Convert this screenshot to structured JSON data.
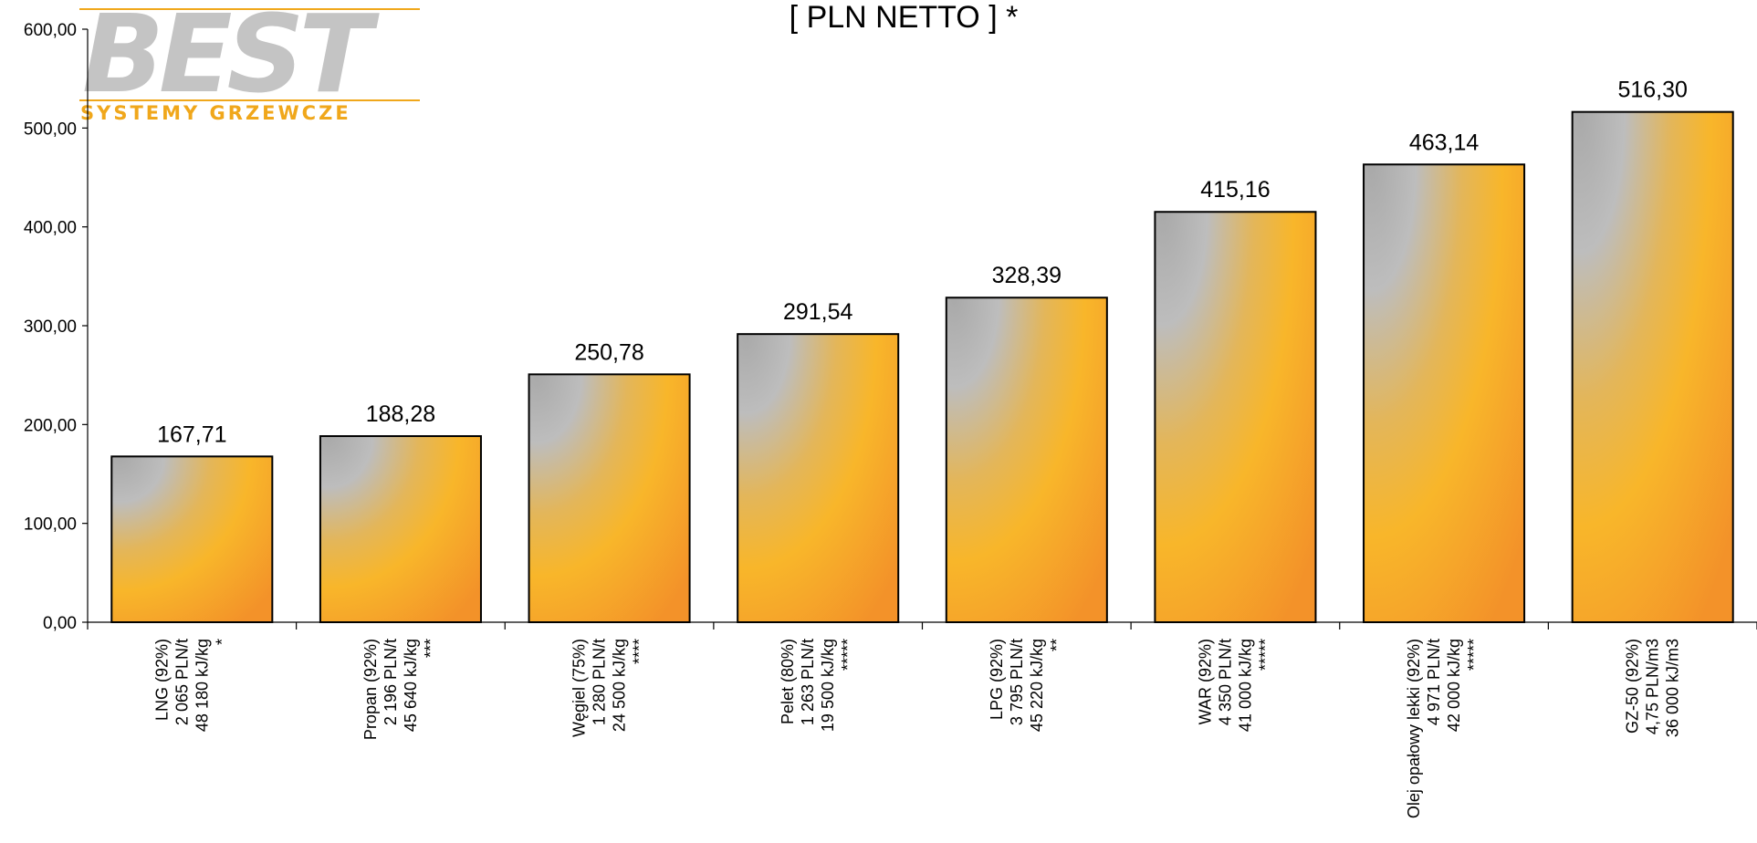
{
  "logo": {
    "main_text": "BEST",
    "sub_text": "SYSTEMY GRZEWCZE",
    "colors": {
      "main": "#c4c4c4",
      "accent": "#f0a71b"
    }
  },
  "chart_data": {
    "type": "bar",
    "title": "[ PLN NETTO ] *",
    "xlabel": "",
    "ylabel": "",
    "ylim": [
      0,
      600
    ],
    "yticks": [
      "0,00",
      "100,00",
      "200,00",
      "300,00",
      "400,00",
      "500,00",
      "600,00"
    ],
    "grid": false,
    "legend": "none",
    "categories": [
      [
        "LNG (92%)",
        "2 065 PLN/t",
        "48 180 kJ/kg",
        "*"
      ],
      [
        "Propan (92%)",
        "2 196 PLN/t",
        "45 640 kJ/kg",
        "***"
      ],
      [
        "Węgiel (75%)",
        "1 280 PLN/t",
        "24 500 kJ/kg",
        "****"
      ],
      [
        "Pelet (80%)",
        "1 263 PLN/t",
        "19 500 kJ/kg",
        "*****"
      ],
      [
        "LPG (92%)",
        "3 795 PLN/t",
        "45 220 kJ/kg",
        "**"
      ],
      [
        "WAR (92%)",
        "4 350 PLN/t",
        "41 000 kJ/kg",
        "*****"
      ],
      [
        "Olej opałowy lekki (92%)",
        "4 971 PLN/t",
        "42 000 kJ/kg",
        "*****"
      ],
      [
        "GZ-50 (92%)",
        "4,75 PLN/m3",
        "36 000 kJ/m3"
      ]
    ],
    "values": [
      167.71,
      188.28,
      250.78,
      291.54,
      328.39,
      415.16,
      463.14,
      516.3
    ],
    "value_labels": [
      "167,71",
      "188,28",
      "250,78",
      "291,54",
      "328,39",
      "415,16",
      "463,14",
      "516,30"
    ],
    "colors": {
      "bar_top": "#b9b9b9",
      "bar_bottom": "#f6a21f",
      "bar_mid": "#f7b52a",
      "outline": "#000000"
    }
  }
}
